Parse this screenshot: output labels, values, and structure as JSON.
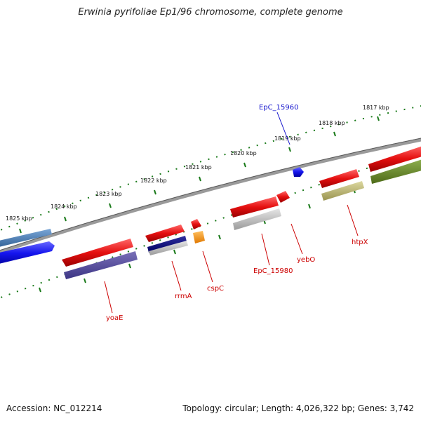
{
  "title": "Erwinia pyrifoliae Ep1/96 chromosome, complete genome",
  "footer": {
    "accession": "Accession: NC_012214",
    "topology": "Topology: circular; Length: 4,026,322 bp; Genes: 3,742"
  },
  "ticks": [
    {
      "label": "1825 kbp"
    },
    {
      "label": "1824 kbp"
    },
    {
      "label": "1823 kbp"
    },
    {
      "label": "1822 kbp"
    },
    {
      "label": "1821 kbp"
    },
    {
      "label": "1820 kbp"
    },
    {
      "label": "1819 kbp"
    },
    {
      "label": "1818 kbp"
    },
    {
      "label": "1817 kbp"
    }
  ],
  "gene_labels": [
    {
      "name": "EpC_15960",
      "color": "#1010cc"
    },
    {
      "name": "yoaE",
      "color": "#cc0000"
    },
    {
      "name": "rrmA",
      "color": "#cc0000"
    },
    {
      "name": "cspC",
      "color": "#cc0000"
    },
    {
      "name": "EpC_15980",
      "color": "#cc0000"
    },
    {
      "name": "yebO",
      "color": "#cc0000"
    },
    {
      "name": "htpX",
      "color": "#cc0000"
    }
  ],
  "colors": {
    "backbone": "#8a8a8a",
    "tick": "#1a7a1a",
    "gene": "#e51010",
    "gene_blue": "#1515ee"
  }
}
